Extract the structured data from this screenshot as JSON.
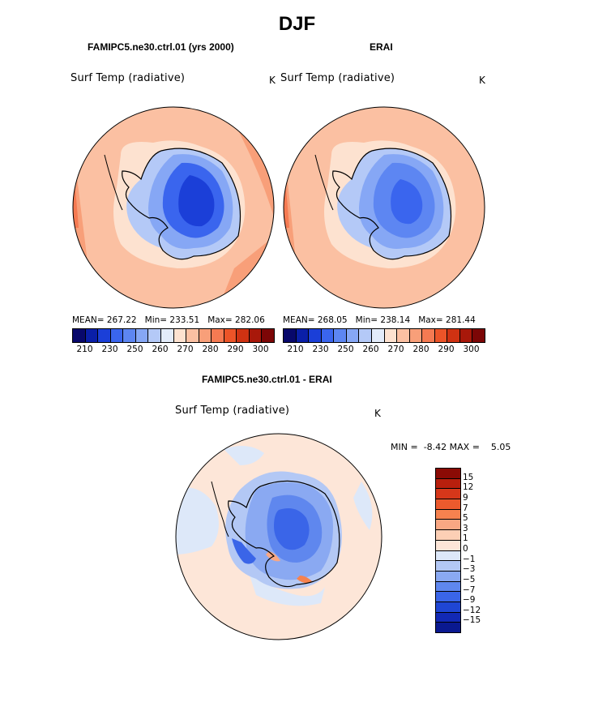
{
  "page": {
    "title": "DJF"
  },
  "panels": [
    {
      "title": "FAMIPC5.ne30.ctrl.01 (yrs 2000)",
      "varname": "Surf Temp (radiative)",
      "units": "K",
      "mean_label": "MEAN=",
      "mean": "267.22",
      "min_label": "Min=",
      "min": "233.51",
      "max_label": "Max=",
      "max": "282.06"
    },
    {
      "title": "ERAI",
      "varname": "Surf Temp (radiative)",
      "units": "K",
      "mean_label": "MEAN=",
      "mean": "268.05",
      "min_label": "Min=",
      "min": "238.14",
      "max_label": "Max=",
      "max": "281.44"
    },
    {
      "title": "FAMIPC5.ne30.ctrl.01 - ERAI",
      "varname": "Surf Temp (radiative)",
      "units": "K",
      "min_label": "MIN =",
      "min": "-8.42",
      "max_label": "MAX =",
      "max": "5.05"
    }
  ],
  "colorbars": {
    "absolute": {
      "ticks": [
        "210",
        "230",
        "250",
        "260",
        "270",
        "280",
        "290",
        "300"
      ],
      "colors": [
        "#08086b",
        "#0a1fa8",
        "#1b3fd8",
        "#3a65ee",
        "#5d86f2",
        "#86a7f5",
        "#b4c9f7",
        "#e3ecfa",
        "#fde2d0",
        "#fbc0a2",
        "#f89f79",
        "#f57a52",
        "#ec5428",
        "#cf3212",
        "#a8180a",
        "#7c0606"
      ]
    },
    "difference": {
      "ticks": [
        "15",
        "12",
        "9",
        "7",
        "5",
        "3",
        "1",
        "0",
        "−1",
        "−3",
        "−5",
        "−7",
        "−9",
        "−12",
        "−15"
      ],
      "colors": [
        "#8b0b05",
        "#b81f0d",
        "#d6371a",
        "#ec5a2d",
        "#f6824f",
        "#f9a783",
        "#fccfb5",
        "#fde6d8",
        "#dde8f9",
        "#b3c8f5",
        "#8aa9f2",
        "#5f87ee",
        "#3a65e8",
        "#1f46d4",
        "#1229b5",
        "#0a1990"
      ]
    }
  },
  "chart_data": [
    {
      "type": "heatmap",
      "title": "FAMIPC5.ne30.ctrl.01 (yrs 2000)",
      "variable": "Surf Temp (radiative)",
      "units": "K",
      "projection": "south polar stereographic",
      "season": "DJF",
      "stats": {
        "mean": 267.22,
        "min": 233.51,
        "max": 282.06
      },
      "contour_levels": [
        210,
        230,
        250,
        260,
        270,
        280,
        290,
        300
      ],
      "colors": {
        "ocean": "#fbc0a2",
        "ice_margin": "#fde2d0",
        "coastal_ice": "#b4c9f7",
        "interior_ice": "#3a65ee",
        "plateau": "#1b3fd8",
        "warm_ocean": "#f57a52"
      }
    },
    {
      "type": "heatmap",
      "title": "ERAI",
      "variable": "Surf Temp (radiative)",
      "units": "K",
      "projection": "south polar stereographic",
      "season": "DJF",
      "stats": {
        "mean": 268.05,
        "min": 238.14,
        "max": 281.44
      },
      "contour_levels": [
        210,
        230,
        250,
        260,
        270,
        280,
        290,
        300
      ]
    },
    {
      "type": "heatmap",
      "title": "FAMIPC5.ne30.ctrl.01 - ERAI",
      "variable": "Surf Temp (radiative)",
      "units": "K",
      "projection": "south polar stereographic",
      "season": "DJF",
      "stats": {
        "min": -8.42,
        "max": 5.05
      },
      "contour_levels": [
        -15,
        -12,
        -9,
        -7,
        -5,
        -3,
        -1,
        0,
        1,
        3,
        5,
        7,
        9,
        12,
        15
      ]
    }
  ]
}
